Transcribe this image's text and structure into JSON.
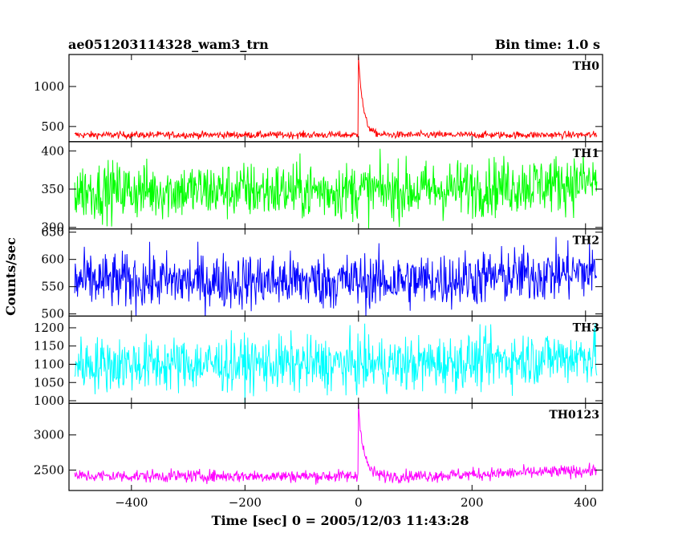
{
  "header": {
    "title": "ae051203114328_wam3_trn",
    "bin_time": "Bin time: 1.0 s"
  },
  "axes": {
    "xlabel": "Time [sec] 0 = 2005/12/03 11:43:28",
    "ylabel": "Counts/sec"
  },
  "chart_data": {
    "type": "line",
    "xlim": [
      -510,
      430
    ],
    "x_range_data": [
      -500,
      420
    ],
    "x_ticks": [
      -400,
      -200,
      0,
      200,
      400
    ],
    "x_tick_labels": [
      "−400",
      "−200",
      "0",
      "200",
      "400"
    ],
    "grid": false,
    "panels": [
      {
        "name": "TH0",
        "color": "#ff0000",
        "ylim": [
          310,
          1400
        ],
        "yticks": [
          500,
          1000
        ],
        "baseline": 395,
        "noise": 22,
        "burst": {
          "t0": 0,
          "peak": 1400,
          "decay": 8
        }
      },
      {
        "name": "TH1",
        "color": "#00ff00",
        "ylim": [
          298,
          412
        ],
        "yticks": [
          300,
          350,
          400
        ],
        "baseline": 348,
        "noise": 19,
        "trend": 12
      },
      {
        "name": "TH2",
        "color": "#0000ff",
        "ylim": [
          496,
          656
        ],
        "yticks": [
          500,
          550,
          600,
          650
        ],
        "baseline": 560,
        "noise": 26,
        "trend": 18
      },
      {
        "name": "TH3",
        "color": "#00ffff",
        "ylim": [
          993,
          1232
        ],
        "yticks": [
          1000,
          1050,
          1100,
          1150,
          1200
        ],
        "baseline": 1100,
        "noise": 38,
        "trend": 25
      },
      {
        "name": "TH0123",
        "color": "#ff00ff",
        "ylim": [
          2210,
          3450
        ],
        "yticks": [
          2500,
          3000
        ],
        "baseline": 2415,
        "noise": 45,
        "trend": 80,
        "burst": {
          "t0": 0,
          "peak": 3450,
          "decay": 9
        }
      }
    ]
  }
}
